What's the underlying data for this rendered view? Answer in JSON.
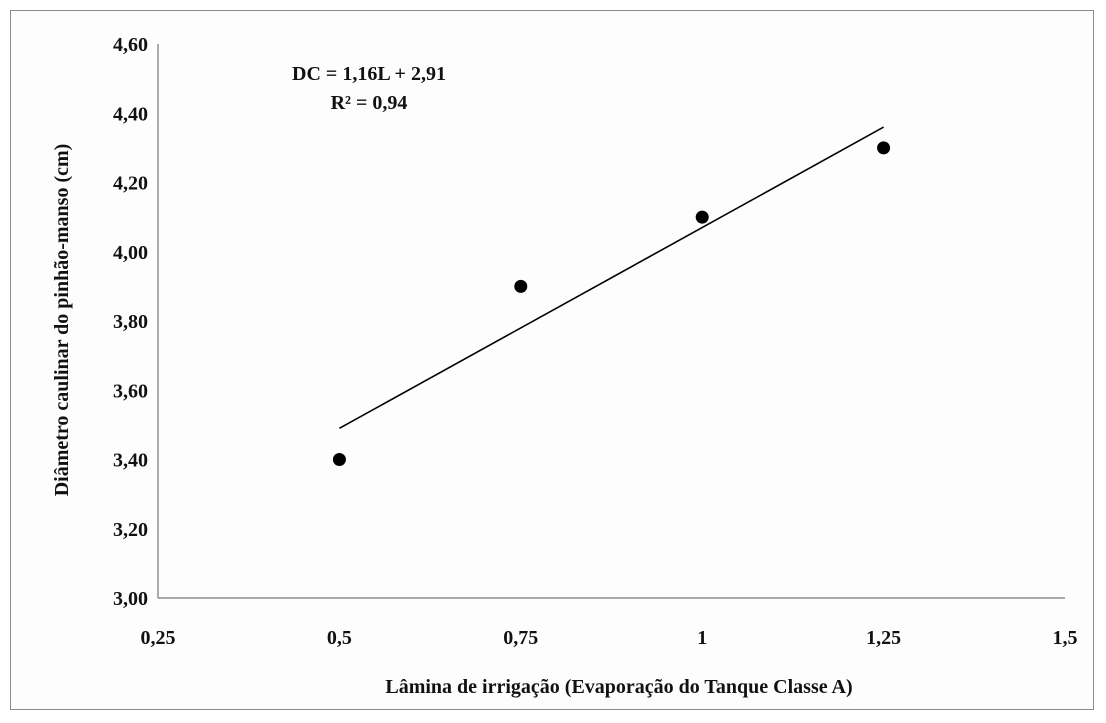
{
  "chart_data": {
    "type": "scatter",
    "xlabel": "Lâmina de irrigação (Evaporação do Tanque Classe A)",
    "ylabel": "Diâmetro caulinar do pinhão-manso (cm)",
    "xlim": [
      0.25,
      1.5
    ],
    "ylim": [
      3.0,
      4.6
    ],
    "x_ticks": [
      0.25,
      0.5,
      0.75,
      1,
      1.25,
      1.5
    ],
    "x_tick_labels": [
      "0,25",
      "0,5",
      "0,75",
      "1",
      "1,25",
      "1,5"
    ],
    "y_ticks": [
      3.0,
      3.2,
      3.4,
      3.6,
      3.8,
      4.0,
      4.2,
      4.4,
      4.6
    ],
    "y_tick_labels": [
      "3,00",
      "3,20",
      "3,40",
      "3,60",
      "3,80",
      "4,00",
      "4,20",
      "4,40",
      "4,60"
    ],
    "series": [
      {
        "x": [
          0.5,
          0.75,
          1.0,
          1.25
        ],
        "y": [
          3.4,
          3.9,
          4.1,
          4.3
        ],
        "marker_color": "#000000"
      }
    ],
    "trendline": {
      "slope": 1.16,
      "intercept": 2.91,
      "x_range": [
        0.5,
        1.25
      ],
      "color": "#000000"
    },
    "annotations": [
      "DC = 1,16L + 2,91",
      "R² = 0,94"
    ],
    "grid": false
  }
}
